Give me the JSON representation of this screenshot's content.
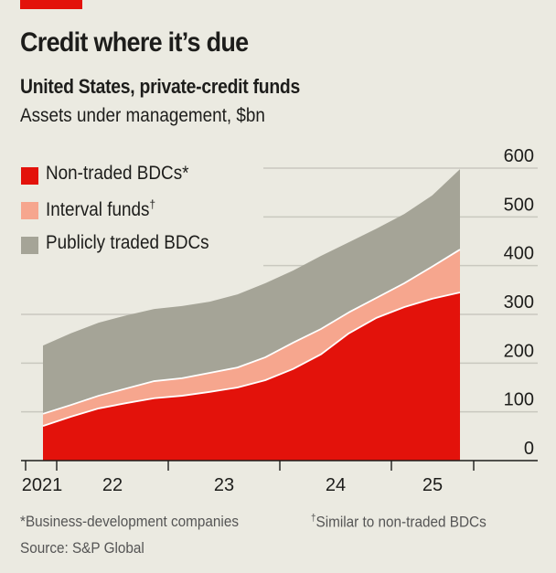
{
  "header": {
    "title": "Credit where it’s due",
    "subtitle": "United States, private-credit funds",
    "unit": "Assets under management, $bn"
  },
  "legend": [
    {
      "label": "Non-traded BDCs",
      "mark": "*",
      "color": "#e3120b"
    },
    {
      "label": "Interval funds",
      "mark": "†",
      "color": "#f6a68e"
    },
    {
      "label": "Publicly traded BDCs",
      "mark": "",
      "color": "#a5a497"
    }
  ],
  "footer": {
    "note1": "*Business-development companies",
    "note2_mark": "†",
    "note2": "Similar to non-traded BDCs",
    "source": "Source: S&P Global"
  },
  "colors": {
    "background": "#ebeae1",
    "accent": "#e3120b",
    "non_traded": "#e3120b",
    "interval": "#f6a68e",
    "public": "#a5a497",
    "grid": "#c9c8bf"
  },
  "chart_data": {
    "type": "area",
    "stacked": true,
    "title": "Credit where it’s due",
    "subtitle": "United States, private-credit funds",
    "ylabel": "Assets under management, $bn",
    "xlabel": "",
    "x": [
      "2021Q3",
      "2021Q4",
      "2022Q1",
      "2022Q2",
      "2022Q3",
      "2022Q4",
      "2023Q1",
      "2023Q2",
      "2023Q3",
      "2023Q4",
      "2024Q1",
      "2024Q2",
      "2024Q3",
      "2024Q4",
      "2025Q1",
      "2025Q2"
    ],
    "x_tick_labels": [
      "2021",
      "22",
      "23",
      "24",
      "25"
    ],
    "y_ticks": [
      0,
      100,
      200,
      300,
      400,
      500,
      600
    ],
    "ylim": [
      0,
      600
    ],
    "grid": true,
    "legend_position": "top-left",
    "series": [
      {
        "name": "Non-traded BDCs*",
        "values": [
          71,
          90,
          107,
          118,
          128,
          133,
          141,
          150,
          165,
          188,
          218,
          261,
          293,
          315,
          332,
          345
        ]
      },
      {
        "name": "Interval funds†",
        "values": [
          25,
          24,
          26,
          30,
          35,
          36,
          39,
          41,
          47,
          54,
          52,
          43,
          41,
          49,
          66,
          88
        ]
      },
      {
        "name": "Publicly traded BDCs",
        "values": [
          140,
          147,
          150,
          150,
          148,
          148,
          146,
          150,
          152,
          148,
          150,
          144,
          142,
          142,
          146,
          165
        ]
      }
    ],
    "stacked_totals": [
      236,
      261,
      283,
      298,
      311,
      317,
      326,
      341,
      364,
      390,
      420,
      448,
      476,
      506,
      544,
      598
    ]
  }
}
